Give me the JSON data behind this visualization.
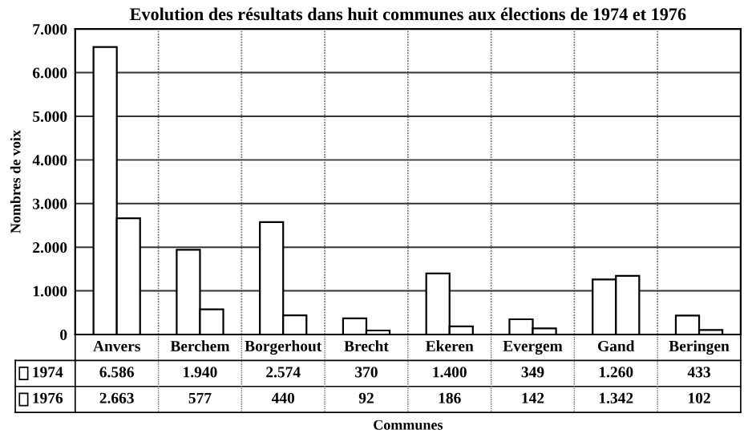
{
  "chart_data": {
    "type": "bar",
    "title": "Evolution des résultats dans huit communes aux élections de 1974 et 1976",
    "xlabel": "Communes",
    "ylabel": "Nombres de voix",
    "categories": [
      "Anvers",
      "Berchem",
      "Borgerhout",
      "Brecht",
      "Ekeren",
      "Evergem",
      "Gand",
      "Beringen"
    ],
    "series": [
      {
        "name": "1974",
        "color": "#ffffff",
        "values": [
          6586,
          1940,
          2574,
          370,
          1400,
          349,
          1260,
          433
        ],
        "value_labels": [
          "6.586",
          "1.940",
          "2.574",
          "370",
          "1.400",
          "349",
          "1.260",
          "433"
        ]
      },
      {
        "name": "1976",
        "color": "#ffffff",
        "values": [
          2663,
          577,
          440,
          92,
          186,
          142,
          1342,
          102
        ],
        "value_labels": [
          "2.663",
          "577",
          "440",
          "92",
          "186",
          "142",
          "1.342",
          "102"
        ]
      }
    ],
    "ylim": [
      0,
      7000
    ],
    "yticks": [
      {
        "value": 0,
        "label": "0"
      },
      {
        "value": 1000,
        "label": "1.000"
      },
      {
        "value": 2000,
        "label": "2.000"
      },
      {
        "value": 3000,
        "label": "3.000"
      },
      {
        "value": 4000,
        "label": "4.000"
      },
      {
        "value": 5000,
        "label": "5.000"
      },
      {
        "value": 6000,
        "label": "6.000"
      },
      {
        "value": 7000,
        "label": "7.000"
      }
    ],
    "grid": true,
    "legend": "bottom left"
  }
}
